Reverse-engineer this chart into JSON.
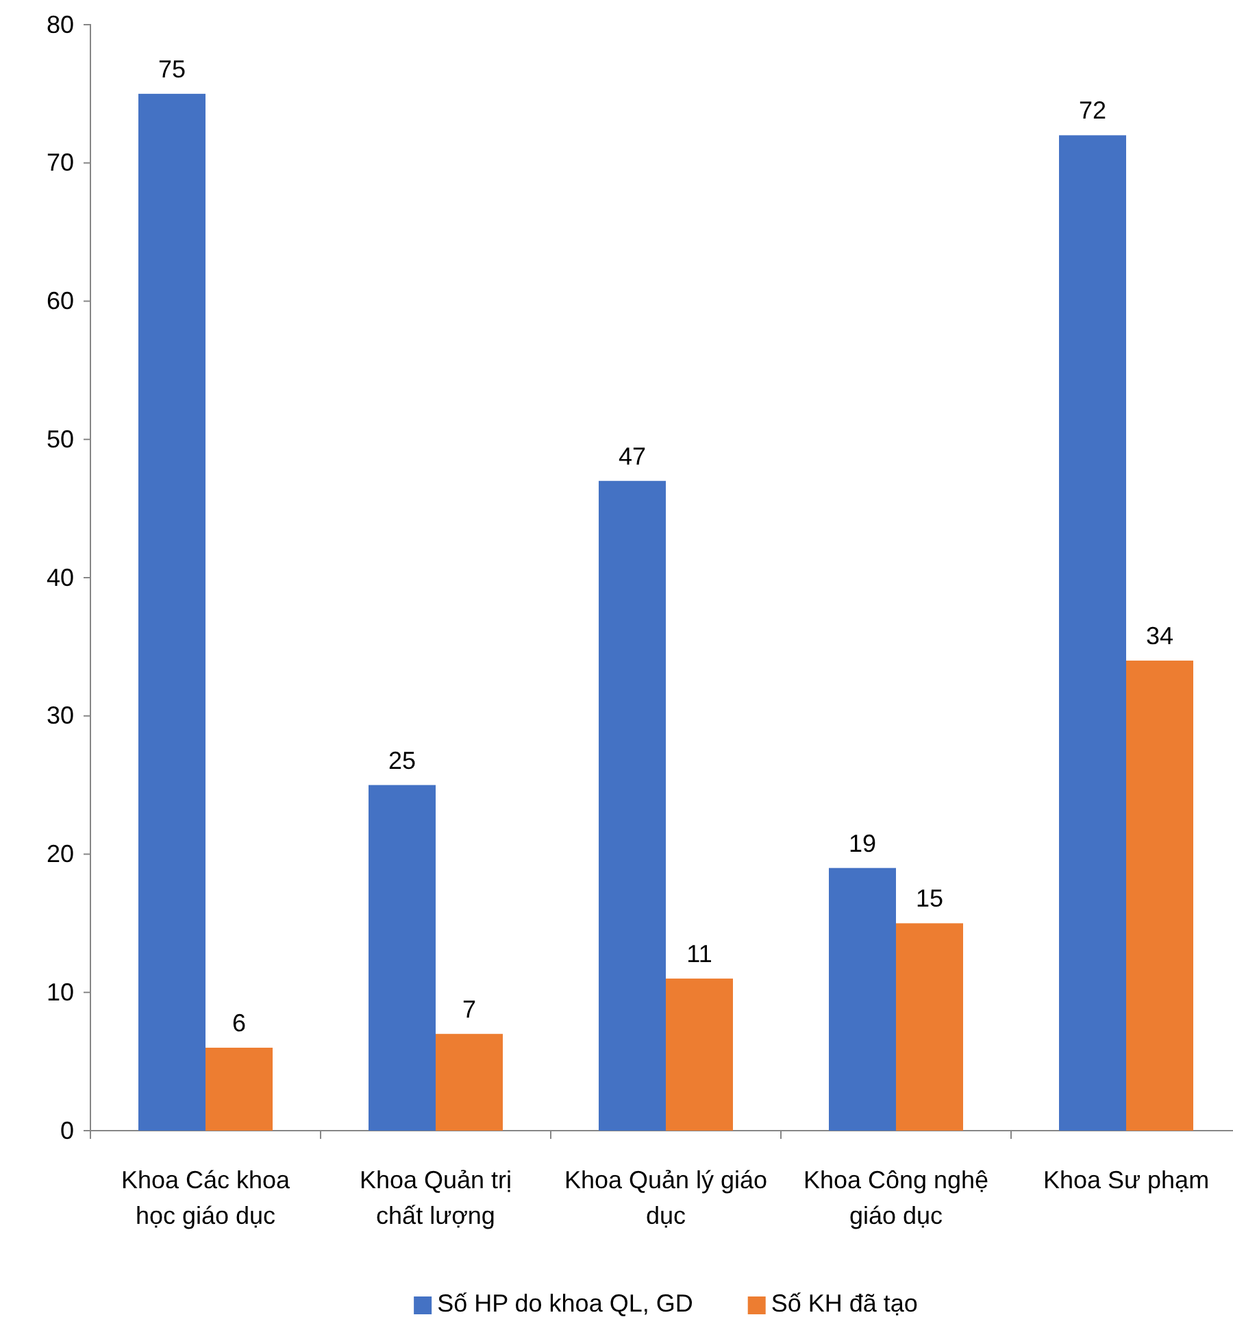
{
  "chart_data": {
    "type": "bar",
    "categories": [
      "Khoa Các khoa học giáo dục",
      "Khoa Quản trị chất lượng",
      "Khoa Quản lý giáo dục",
      "Khoa Công nghệ giáo dục",
      "Khoa Sư phạm"
    ],
    "series": [
      {
        "name": "Số HP do khoa QL, GD",
        "color": "#4472c4",
        "values": [
          75,
          25,
          47,
          19,
          72
        ]
      },
      {
        "name": "Số KH đã tạo",
        "color": "#ed7d31",
        "values": [
          6,
          7,
          11,
          15,
          34
        ]
      }
    ],
    "ylim": [
      0,
      80
    ],
    "yticks": [
      0,
      10,
      20,
      30,
      40,
      50,
      60,
      70,
      80
    ],
    "data_labels": true,
    "legend": "bottom",
    "grid": false
  }
}
